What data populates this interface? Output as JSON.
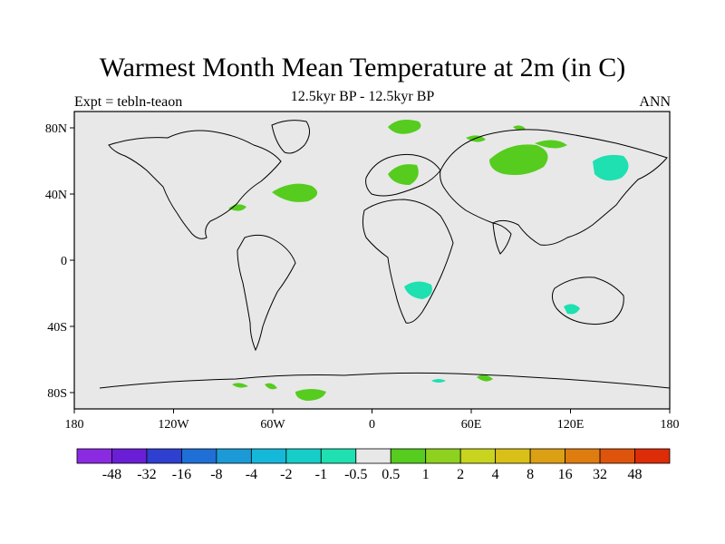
{
  "title": "Warmest Month Mean Temperature at 2m (in C)",
  "subtitle": "12.5kyr BP - 12.5kyr BP",
  "left_label": "Expt = tebln-teaon",
  "right_label": "ANN",
  "map": {
    "background_color": "#e8e8e8",
    "x_ticks": [
      "180",
      "120W",
      "60W",
      "0",
      "60E",
      "120E",
      "180"
    ],
    "y_ticks": [
      "80N",
      "40N",
      "0",
      "40S",
      "80S"
    ]
  },
  "colorbar": {
    "colors": [
      "#8a2be2",
      "#6a1fd6",
      "#2f3fd0",
      "#1f6fd6",
      "#1b9ad6",
      "#14b8d8",
      "#16cdc8",
      "#1ee0b0",
      "#e8e8e8",
      "#55cc1e",
      "#8ed11e",
      "#c8d41e",
      "#d8c018",
      "#dca014",
      "#de7c10",
      "#de540c",
      "#dd2c08"
    ],
    "labels": [
      "-48",
      "-32",
      "-16",
      "-8",
      "-4",
      "-2",
      "-1",
      "-0.5",
      "0.5",
      "1",
      "2",
      "4",
      "8",
      "16",
      "32",
      "48"
    ]
  },
  "anomaly_regions": [
    {
      "name": "greenland-patch",
      "color": "#55cc1e"
    },
    {
      "name": "north-atlantic-patch",
      "color": "#55cc1e"
    },
    {
      "name": "north-europe-patch",
      "color": "#55cc1e"
    },
    {
      "name": "central-asia-patch",
      "color": "#55cc1e"
    },
    {
      "name": "siberia-patch",
      "color": "#55cc1e"
    },
    {
      "name": "east-siberia-patch",
      "color": "#1ee0b0"
    },
    {
      "name": "south-africa-patch",
      "color": "#1ee0b0"
    },
    {
      "name": "australia-patch",
      "color": "#1ee0b0"
    },
    {
      "name": "antarctica-patch",
      "color": "#55cc1e"
    }
  ]
}
